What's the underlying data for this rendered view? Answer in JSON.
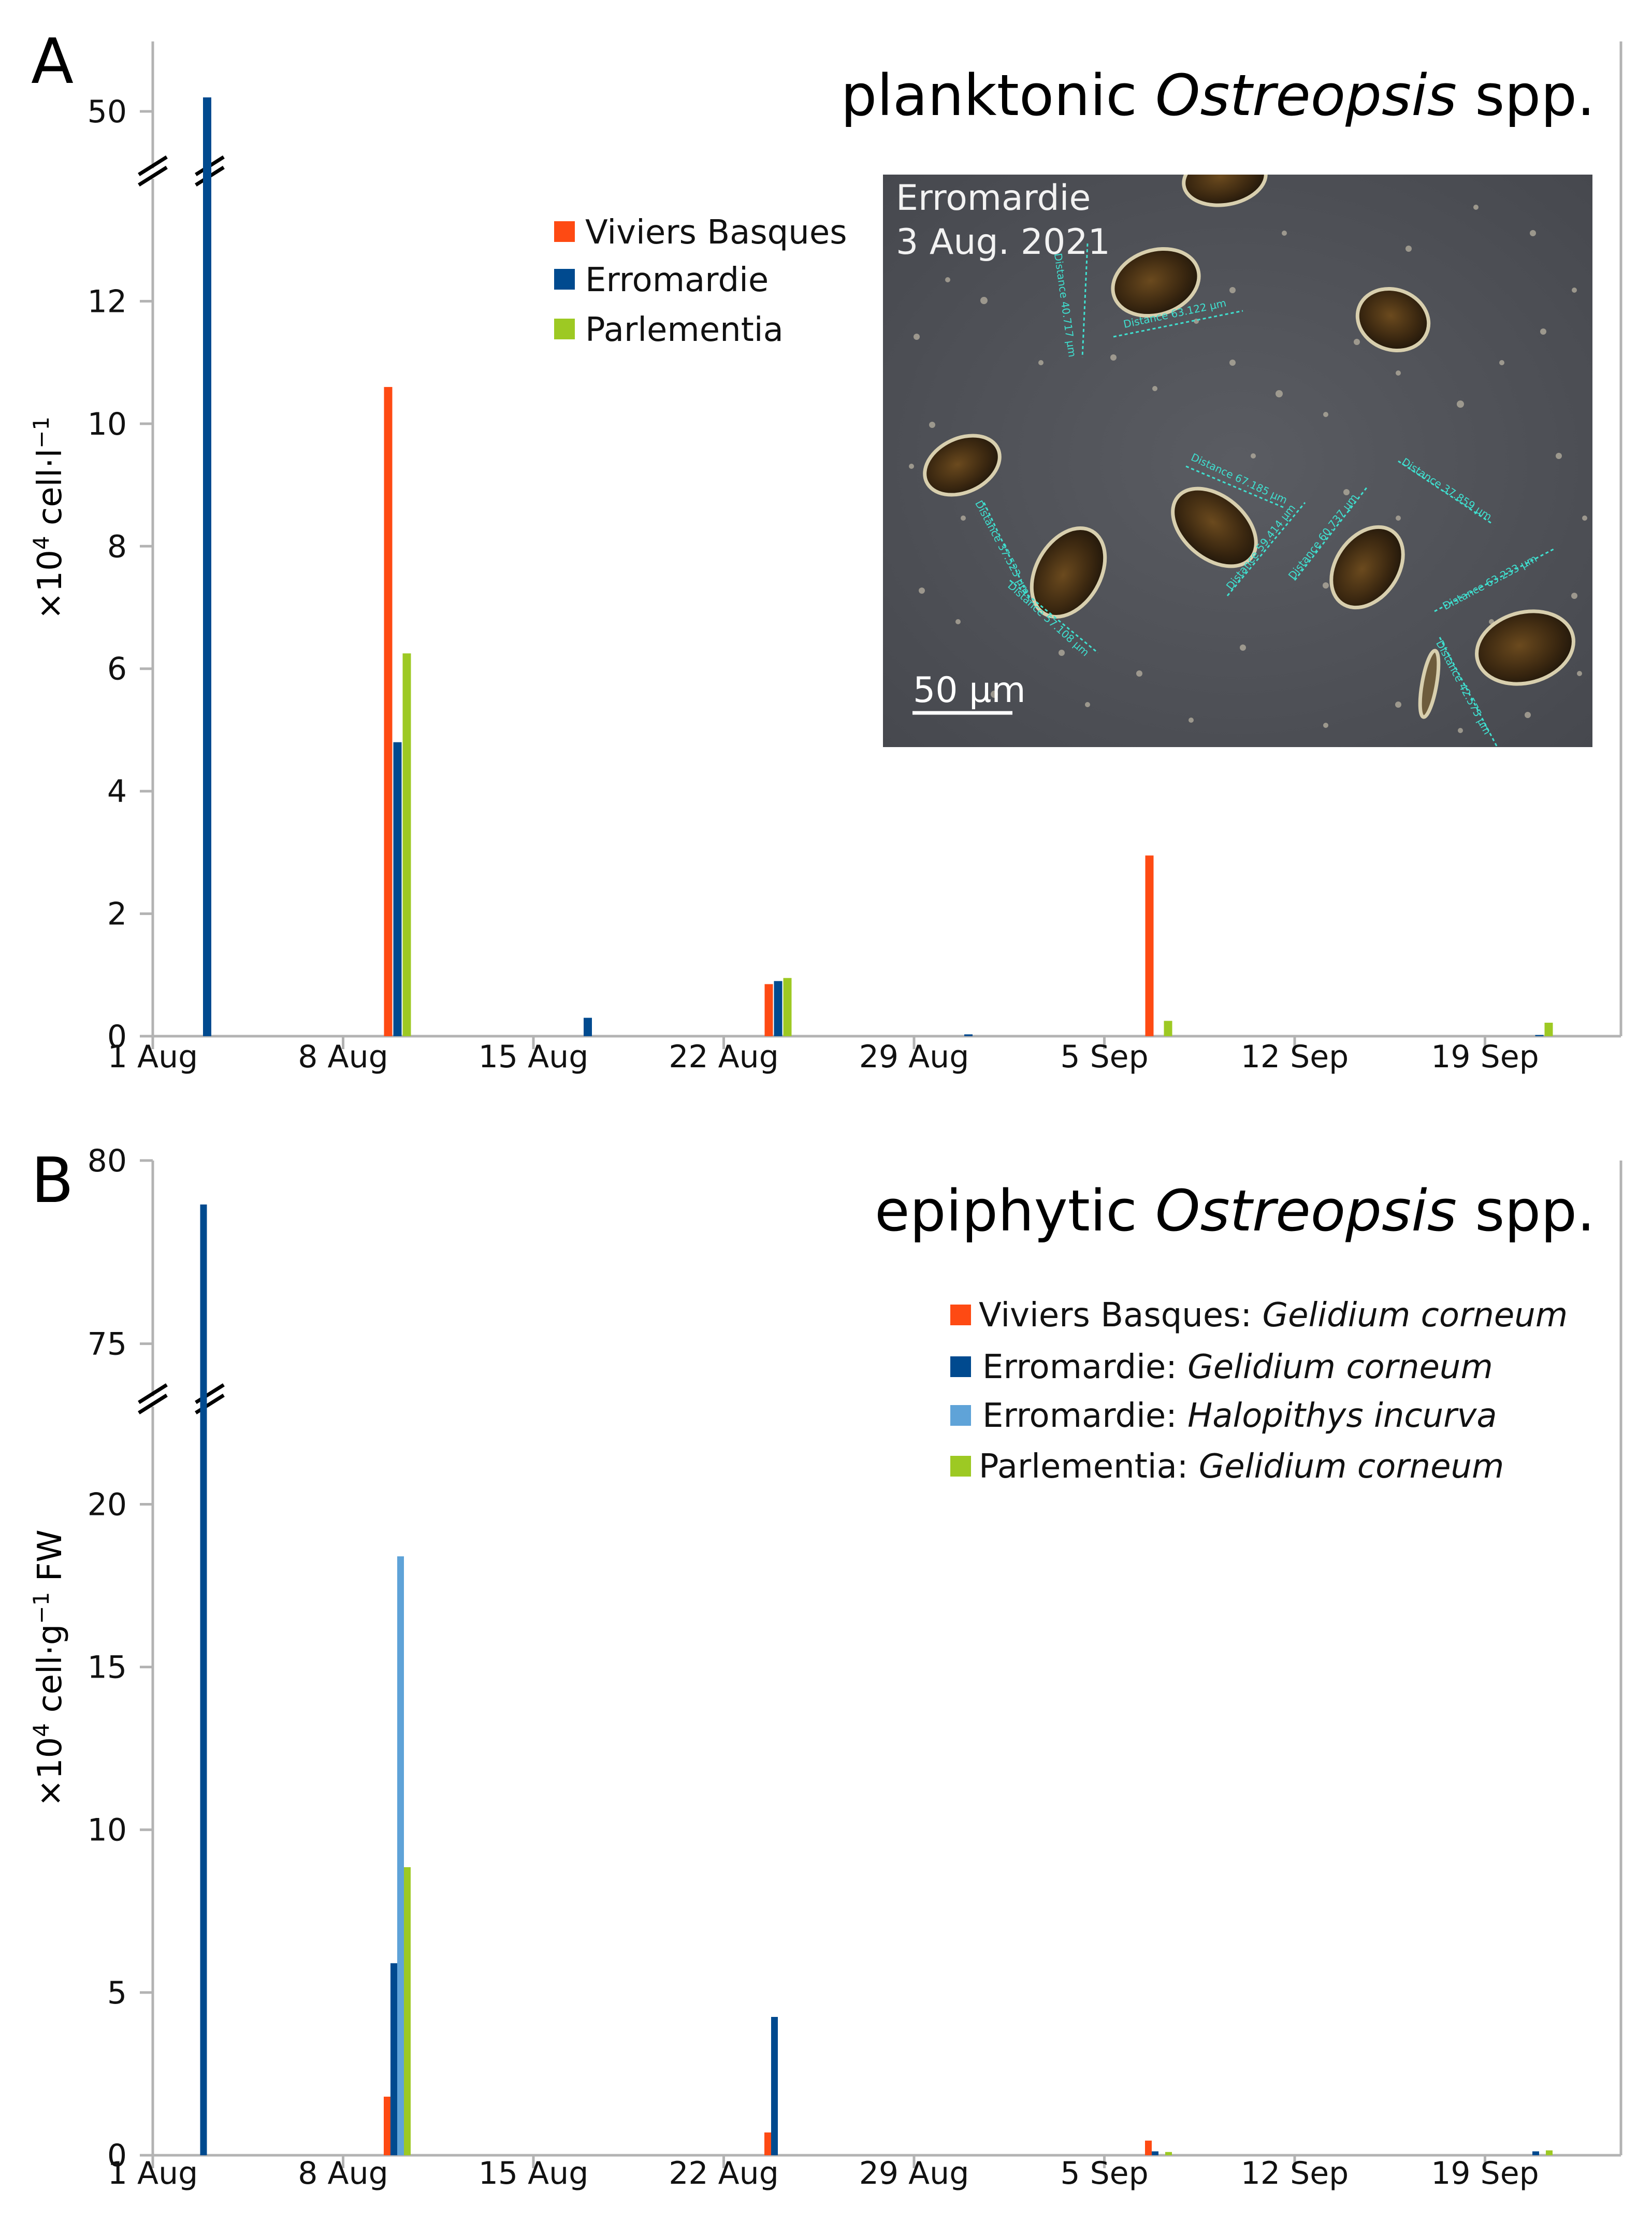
{
  "colors": {
    "viviers": "#fe4a13",
    "erromardie": "#004a8f",
    "erromardie_halo": "#5fa3d8",
    "parlementia": "#9dc923",
    "axis": "#b3b3b3"
  },
  "chart_data": [
    {
      "panel_label": "A",
      "type": "bar",
      "title_plain": "planktonic ",
      "title_italic": "Ostreopsis",
      "title_suffix": " spp.",
      "ylabel_prefix": "×10",
      "ylabel_sup": "4",
      "ylabel_main": " cell·l",
      "ylabel_sup2": "−1",
      "xlabel": "",
      "x_tick_labels": [
        "1 Aug",
        "8 Aug",
        "15 Aug",
        "22 Aug",
        "29 Aug",
        "5 Sep",
        "12 Sep",
        "19 Sep"
      ],
      "x_range_days": [
        0,
        54
      ],
      "y_lower_ticks": [
        "0",
        "2",
        "4",
        "6",
        "8",
        "10",
        "12"
      ],
      "y_lower_range": [
        0,
        14
      ],
      "y_upper_ticks": [
        "50"
      ],
      "y_upper_range": [
        49,
        51
      ],
      "axis_break": true,
      "legend": [
        {
          "name": "Viviers Basques",
          "color_key": "viviers"
        },
        {
          "name": "Erromardie",
          "color_key": "erromardie"
        },
        {
          "name": "Parlementia",
          "color_key": "parlementia"
        }
      ],
      "series": [
        {
          "name": "Viviers Basques",
          "color_key": "viviers",
          "points": [
            {
              "day": 9,
              "value": 10.6
            },
            {
              "day": 23,
              "value": 0.85
            },
            {
              "day": 37,
              "value": 2.95
            }
          ]
        },
        {
          "name": "Erromardie",
          "color_key": "erromardie",
          "points": [
            {
              "day": 2,
              "value": 50.2
            },
            {
              "day": 9,
              "value": 4.8
            },
            {
              "day": 16,
              "value": 0.3
            },
            {
              "day": 23,
              "value": 0.9
            },
            {
              "day": 30,
              "value": 0.03
            },
            {
              "day": 51,
              "value": 0.02
            }
          ]
        },
        {
          "name": "Parlementia",
          "color_key": "parlementia",
          "points": [
            {
              "day": 9,
              "value": 6.25
            },
            {
              "day": 23,
              "value": 0.95
            },
            {
              "day": 37,
              "value": 0.25
            },
            {
              "day": 51,
              "value": 0.22
            }
          ]
        }
      ],
      "inset": {
        "caption_line1": "Erromardie",
        "caption_line2": "3 Aug. 2021",
        "scale_bar": "50 µm",
        "measurements": [
          "Distance 63.122 µm",
          "Distance 40.717 µm",
          "Distance 67.185 µm",
          "Distance 37.523 µm",
          "Distance 57.108 µm",
          "Distance 59.414 µm",
          "Distance 60.737 µm",
          "Distance 37.859 µm",
          "Distance 63.233 µm",
          "Distance 42.575 µm"
        ]
      }
    },
    {
      "panel_label": "B",
      "type": "bar",
      "title_plain": "epiphytic ",
      "title_italic": "Ostreopsis",
      "title_suffix": " spp.",
      "ylabel_prefix": "×10",
      "ylabel_sup": "4",
      "ylabel_main": " cell·g",
      "ylabel_sup2": "−1",
      "ylabel_suffix": " FW",
      "xlabel": "",
      "x_tick_labels": [
        "1 Aug",
        "8 Aug",
        "15 Aug",
        "22 Aug",
        "29 Aug",
        "5 Sep",
        "12 Sep",
        "19 Sep"
      ],
      "x_range_days": [
        0,
        54
      ],
      "y_lower_ticks": [
        "0",
        "5",
        "10",
        "15",
        "20"
      ],
      "y_lower_range": [
        0,
        23
      ],
      "y_upper_ticks": [
        "75",
        "80"
      ],
      "y_upper_range": [
        73,
        80
      ],
      "axis_break": true,
      "legend": [
        {
          "site": "Viviers Basques: ",
          "species": "Gelidium corneum",
          "color_key": "viviers"
        },
        {
          "site": "Erromardie: ",
          "species": "Gelidium corneum",
          "color_key": "erromardie"
        },
        {
          "site": "Erromardie: ",
          "species": "Halopithys incurva",
          "color_key": "erromardie_halo"
        },
        {
          "site": "Parlementia: ",
          "species": "Gelidium corneum",
          "color_key": "parlementia"
        }
      ],
      "series": [
        {
          "name": "Viviers Basques: Gelidium corneum",
          "color_key": "viviers",
          "points": [
            {
              "day": 9,
              "value": 1.8
            },
            {
              "day": 23,
              "value": 0.7
            },
            {
              "day": 37,
              "value": 0.45
            }
          ]
        },
        {
          "name": "Erromardie: Gelidium corneum",
          "color_key": "erromardie",
          "points": [
            {
              "day": 2,
              "value": 78.8
            },
            {
              "day": 9,
              "value": 5.9
            },
            {
              "day": 23,
              "value": 4.25
            },
            {
              "day": 37,
              "value": 0.12
            },
            {
              "day": 51,
              "value": 0.12
            }
          ]
        },
        {
          "name": "Erromardie: Halopithys incurva",
          "color_key": "erromardie_halo",
          "points": [
            {
              "day": 9,
              "value": 18.4
            }
          ]
        },
        {
          "name": "Parlementia: Gelidium corneum",
          "color_key": "parlementia",
          "points": [
            {
              "day": 9,
              "value": 8.85
            },
            {
              "day": 37,
              "value": 0.1
            },
            {
              "day": 51,
              "value": 0.15
            }
          ]
        }
      ]
    }
  ]
}
